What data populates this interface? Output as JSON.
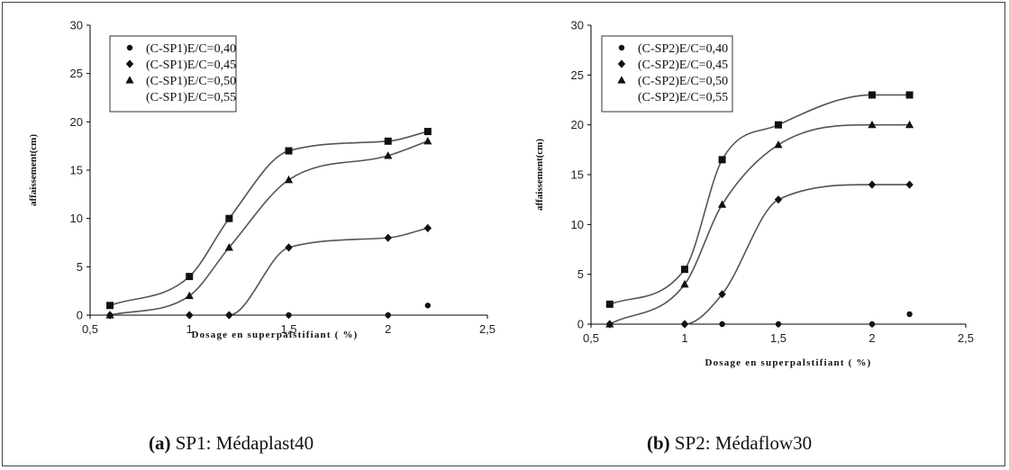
{
  "chart_data": [
    {
      "type": "line",
      "xlabel": "Dosage en superpalstifiant ( %)",
      "ylabel": "affaissement(cm)",
      "xlim": [
        0.5,
        2.5
      ],
      "ylim": [
        0,
        30
      ],
      "xticks": [
        "0,5",
        "1",
        "1,5",
        "2",
        "2,5"
      ],
      "yticks": [
        "0",
        "5",
        "10",
        "15",
        "20",
        "25",
        "30"
      ],
      "legend_position": "top-left",
      "x": [
        0.6,
        1.0,
        1.2,
        1.5,
        2.0,
        2.2
      ],
      "series": [
        {
          "name": "(C-SP1)E/C=0,40",
          "marker": "circle",
          "values": [
            0,
            0,
            0,
            0,
            0,
            1
          ]
        },
        {
          "name": "(C-SP1)E/C=0,45",
          "marker": "diamond",
          "values": [
            0,
            0,
            0,
            7,
            8,
            9
          ]
        },
        {
          "name": "(C-SP1)E/C=0,50",
          "marker": "triangle",
          "values": [
            0,
            2,
            7,
            14,
            16.5,
            18
          ]
        },
        {
          "name": "(C-SP1)E/C=0,55",
          "marker": "square",
          "values": [
            1,
            4,
            10,
            17,
            18,
            19
          ]
        }
      ],
      "caption": {
        "letter": "(a)",
        "text": " SP1: Médaplast40"
      }
    },
    {
      "type": "line",
      "xlabel": "Dosage en superpalstifiant ( %)",
      "ylabel": "affaissement(cm)",
      "xlim": [
        0.5,
        2.5
      ],
      "ylim": [
        0,
        30
      ],
      "xticks": [
        "0,5",
        "1",
        "1,5",
        "2",
        "2,5"
      ],
      "yticks": [
        "0",
        "5",
        "10",
        "15",
        "20",
        "25",
        "30"
      ],
      "legend_position": "top-left",
      "x": [
        0.6,
        1.0,
        1.2,
        1.5,
        2.0,
        2.2
      ],
      "series": [
        {
          "name": "(C-SP2)E/C=0,40",
          "marker": "circle",
          "values": [
            0,
            0,
            0,
            0,
            0,
            1
          ]
        },
        {
          "name": "(C-SP2)E/C=0,45",
          "marker": "diamond",
          "values": [
            0,
            0,
            3,
            12.5,
            14,
            14
          ]
        },
        {
          "name": "(C-SP2)E/C=0,50",
          "marker": "triangle",
          "values": [
            0,
            4,
            12,
            18,
            20,
            20
          ]
        },
        {
          "name": "(C-SP2)E/C=0,55",
          "marker": "square",
          "values": [
            2,
            5.5,
            16.5,
            20,
            23,
            23
          ]
        }
      ],
      "caption": {
        "letter": "(b)",
        "text": " SP2: Médaflow30"
      }
    }
  ]
}
